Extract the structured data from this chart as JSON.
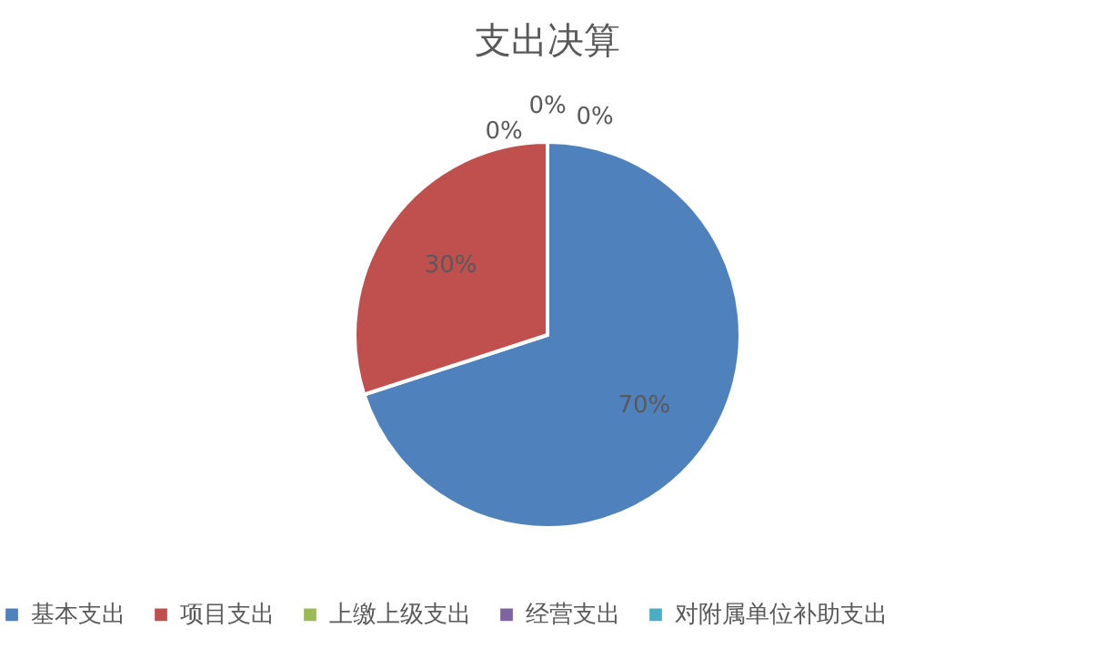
{
  "chart_data": {
    "type": "pie",
    "title": "支出决算",
    "categories": [
      "基本支出",
      "项目支出",
      "上缴上级支出",
      "经营支出",
      "对附属单位补助支出"
    ],
    "values": [
      70,
      30,
      0,
      0,
      0
    ],
    "colors": [
      "#4f81bd",
      "#c0504d",
      "#9bbb59",
      "#8064a2",
      "#4bacc6"
    ],
    "value_labels": [
      "70%",
      "30%",
      "0%",
      "0%",
      "0%"
    ],
    "legend": "bottom"
  }
}
